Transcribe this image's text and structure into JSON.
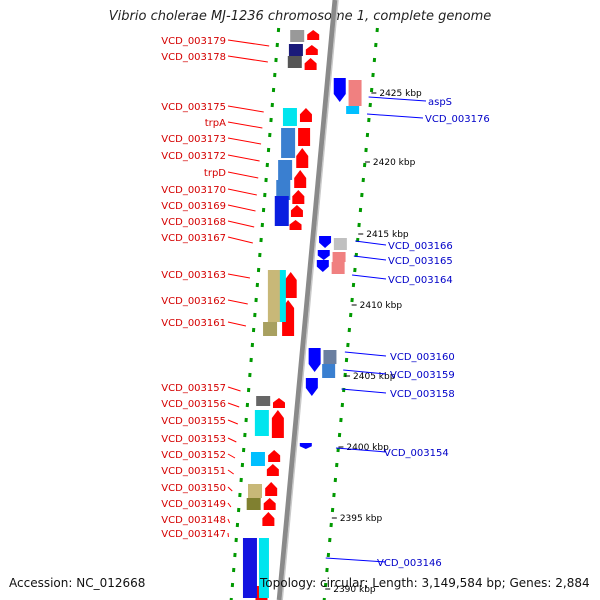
{
  "title": "Vibrio cholerae MJ-1236 chromosome 1, complete genome",
  "accession_text": "Accession: NC_012668",
  "stats_text": "Topology: circular; Length: 3,149,584 bp; Genes: 2,884",
  "colors": {
    "backbone": "#8a8a8a",
    "forward_gene": "#ff0000",
    "reverse_gene": "#0000ff",
    "left_label": "#d40000",
    "right_label": "#0000c8",
    "dash": "#009900"
  },
  "kbp_marks": [
    "2425 kbp",
    "2420 kbp",
    "2415 kbp",
    "2410 kbp",
    "2405 kbp",
    "2400 kbp",
    "2395 kbp",
    "2390 kbp"
  ],
  "left_labels": [
    "VCD_003179",
    "VCD_003178",
    "VCD_003175",
    "trpA",
    "VCD_003173",
    "VCD_003172",
    "trpD",
    "VCD_003170",
    "VCD_003169",
    "VCD_003168",
    "VCD_003167",
    "VCD_003163",
    "VCD_003162",
    "VCD_003161",
    "VCD_003157",
    "VCD_003156",
    "VCD_003155",
    "VCD_003153",
    "VCD_003152",
    "VCD_003151",
    "VCD_003150",
    "VCD_003149",
    "VCD_003148",
    "VCD_003147"
  ],
  "right_labels": [
    "aspS",
    "VCD_003176",
    "VCD_003166",
    "VCD_003165",
    "VCD_003164",
    "VCD_003160",
    "VCD_003159",
    "VCD_003158",
    "VCD_003154",
    "VCD_003146"
  ]
}
